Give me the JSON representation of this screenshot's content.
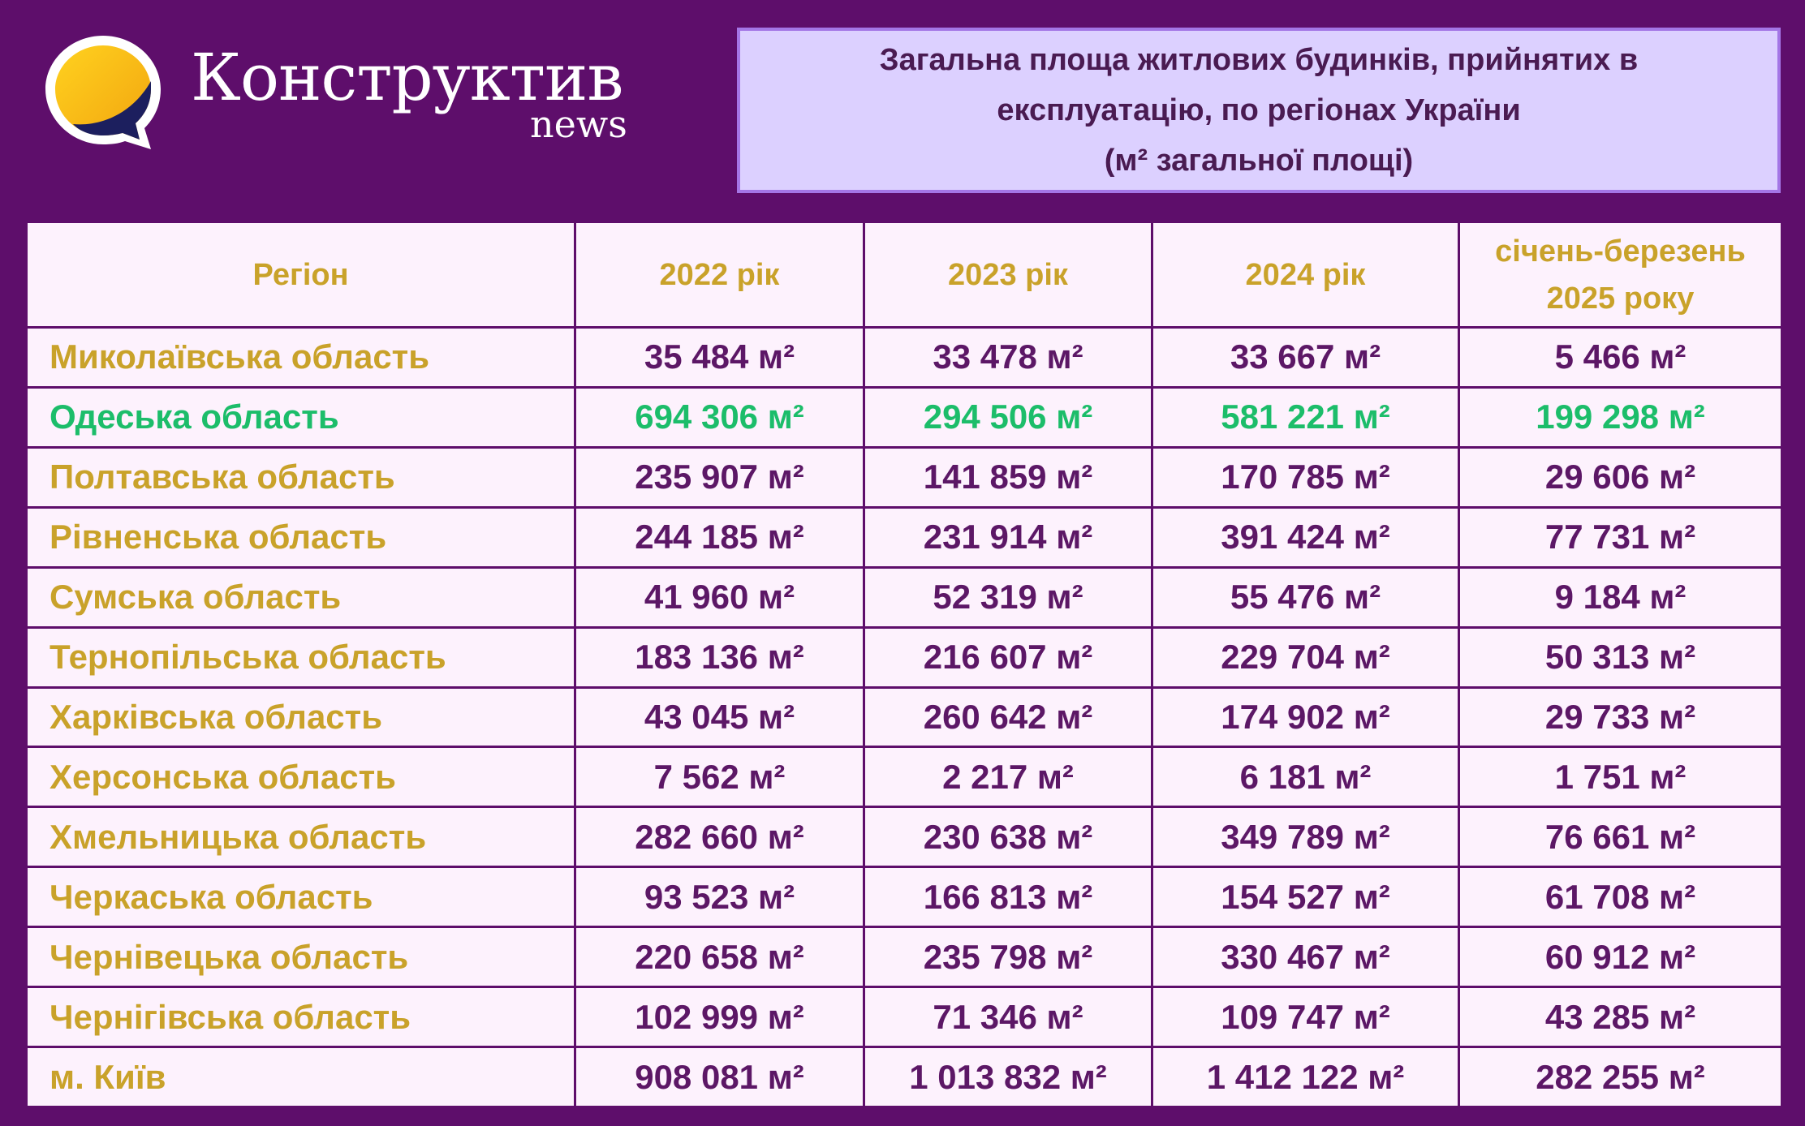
{
  "brand": {
    "name": "Конструктив",
    "sub": "news"
  },
  "title": {
    "line1": "Загальна площа житлових будинків, прийнятих в",
    "line2": "експлуатацію, по регіонах України",
    "line3": "(м² загальної площі)"
  },
  "colors": {
    "background": "#5e0e6b",
    "title_box": "#dcd0ff",
    "header_text": "#c9a22a",
    "value_text": "#5c1766",
    "highlight": "#1cbd6a",
    "table_bg": "#fdf2fd"
  },
  "chart_data": {
    "type": "table",
    "columns": [
      "Регіон",
      "2022 рік",
      "2023 рік",
      "2024 рік",
      "січень-березень 2025 року"
    ],
    "column_lines": {
      "q1_line1": "січень-березень",
      "q1_line2": "2025 року"
    },
    "highlight_region": "Одеська область",
    "rows": [
      {
        "region": "Миколаївська область",
        "y2022": "35 484 м²",
        "y2023": "33 478 м²",
        "y2024": "33 667 м²",
        "q1_2025": "5 466 м²"
      },
      {
        "region": "Одеська область",
        "y2022": "694 306 м²",
        "y2023": "294 506 м²",
        "y2024": "581 221 м²",
        "q1_2025": "199 298 м²"
      },
      {
        "region": "Полтавська область",
        "y2022": "235 907 м²",
        "y2023": "141 859 м²",
        "y2024": "170 785 м²",
        "q1_2025": "29 606 м²"
      },
      {
        "region": "Рівненська область",
        "y2022": "244 185 м²",
        "y2023": "231 914 м²",
        "y2024": "391 424 м²",
        "q1_2025": "77 731 м²"
      },
      {
        "region": "Сумська область",
        "y2022": "41 960 м²",
        "y2023": "52 319 м²",
        "y2024": "55 476 м²",
        "q1_2025": "9 184 м²"
      },
      {
        "region": "Тернопільська область",
        "y2022": "183 136 м²",
        "y2023": "216 607 м²",
        "y2024": "229 704 м²",
        "q1_2025": "50 313 м²"
      },
      {
        "region": "Харківська область",
        "y2022": "43 045 м²",
        "y2023": "260 642 м²",
        "y2024": "174 902 м²",
        "q1_2025": "29 733 м²"
      },
      {
        "region": "Херсонська область",
        "y2022": "7 562 м²",
        "y2023": "2 217 м²",
        "y2024": "6 181 м²",
        "q1_2025": "1 751 м²"
      },
      {
        "region": "Хмельницька область",
        "y2022": "282 660 м²",
        "y2023": "230 638 м²",
        "y2024": "349 789 м²",
        "q1_2025": "76 661 м²"
      },
      {
        "region": "Черкаська область",
        "y2022": "93 523 м²",
        "y2023": "166 813 м²",
        "y2024": "154 527 м²",
        "q1_2025": "61 708 м²"
      },
      {
        "region": "Чернівецька область",
        "y2022": "220 658 м²",
        "y2023": "235 798 м²",
        "y2024": "330 467 м²",
        "q1_2025": "60 912 м²"
      },
      {
        "region": "Чернігівська область",
        "y2022": "102 999 м²",
        "y2023": "71 346 м²",
        "y2024": "109 747 м²",
        "q1_2025": "43 285 м²"
      },
      {
        "region": "м. Київ",
        "y2022": "908 081 м²",
        "y2023": "1 013 832 м²",
        "y2024": "1 412 122 м²",
        "q1_2025": "282 255 м²"
      }
    ]
  }
}
